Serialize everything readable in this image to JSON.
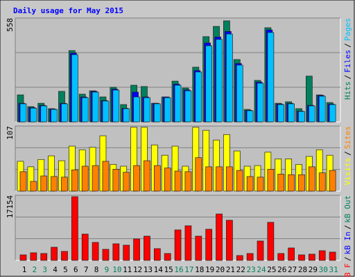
{
  "title": "Daily usage for May 2015",
  "title_color": "#0000ff",
  "legend_separator": "/",
  "chart_data": [
    {
      "type": "bar",
      "ylim": [
        0,
        558
      ],
      "yticks": [
        558
      ],
      "series": [
        {
          "name": "Hits",
          "color": "#00805c",
          "values": [
            145,
            82,
            100,
            71,
            164,
            383,
            149,
            167,
            134,
            186,
            93,
            197,
            190,
            100,
            134,
            219,
            182,
            294,
            458,
            513,
            543,
            335,
            67,
            223,
            506,
            100,
            108,
            71,
            246,
            145,
            104
          ]
        },
        {
          "name": "Files",
          "color": "#0000ff",
          "values": [
            100,
            77,
            89,
            69,
            100,
            370,
            134,
            164,
            115,
            176,
            73,
            160,
            134,
            100,
            134,
            203,
            172,
            276,
            424,
            456,
            486,
            314,
            62,
            214,
            494,
            96,
            100,
            58,
            89,
            142,
            96
          ]
        },
        {
          "name": "Pages",
          "color": "#00c0ff",
          "values": [
            97,
            74,
            86,
            67,
            97,
            361,
            130,
            160,
            112,
            171,
            71,
            134,
            130,
            97,
            130,
            197,
            167,
            268,
            409,
            443,
            472,
            305,
            60,
            208,
            480,
            93,
            97,
            56,
            86,
            138,
            93
          ]
        }
      ]
    },
    {
      "type": "bar",
      "ylim": [
        0,
        107
      ],
      "yticks": [
        107
      ],
      "series": [
        {
          "name": "Visits",
          "color": "#ffff00",
          "values": [
            49,
            40,
            52,
            58,
            50,
            74,
            68,
            72,
            91,
            44,
            41,
            105,
            105,
            76,
            59,
            74,
            41,
            105,
            100,
            84,
            93,
            66,
            41,
            42,
            64,
            53,
            53,
            44,
            57,
            68,
            59
          ]
        },
        {
          "name": "Sites",
          "color": "#ff8000",
          "values": [
            32,
            16,
            25,
            24,
            23,
            35,
            41,
            42,
            49,
            36,
            31,
            42,
            50,
            42,
            38,
            33,
            32,
            55,
            40,
            40,
            40,
            34,
            24,
            23,
            36,
            28,
            27,
            27,
            40,
            30,
            34
          ]
        }
      ]
    },
    {
      "type": "bar",
      "ylim": [
        0,
        17154
      ],
      "yticks": [
        17154
      ],
      "categories": [
        "1",
        "2",
        "3",
        "4",
        "5",
        "6",
        "7",
        "8",
        "9",
        "10",
        "11",
        "12",
        "13",
        "14",
        "15",
        "16",
        "17",
        "18",
        "19",
        "20",
        "21",
        "22",
        "23",
        "24",
        "25",
        "26",
        "27",
        "28",
        "29",
        "30",
        "31"
      ],
      "category_colors": [
        "#000000",
        "#00805c",
        "#00805c",
        "#000000",
        "#000000",
        "#000000",
        "#000000",
        "#000000",
        "#00805c",
        "#00805c",
        "#000000",
        "#000000",
        "#000000",
        "#000000",
        "#000000",
        "#00805c",
        "#00805c",
        "#000000",
        "#000000",
        "#000000",
        "#000000",
        "#000000",
        "#00805c",
        "#00805c",
        "#000000",
        "#000000",
        "#000000",
        "#000000",
        "#000000",
        "#00805c",
        "#00805c"
      ],
      "series": [
        {
          "name": "kB F",
          "color": "#ff0000",
          "values": [
            1460,
            2008,
            1825,
            3468,
            2373,
            16790,
            6935,
            4745,
            2920,
            4380,
            4015,
            5658,
            6388,
            3103,
            1825,
            8030,
            9125,
            6388,
            8213,
            12228,
            10585,
            1278,
            1825,
            5110,
            10038,
            1825,
            3285,
            1460,
            1643,
            2555,
            2190
          ]
        }
      ],
      "legend_items": [
        {
          "name": "kB In",
          "color": "#0000ff"
        },
        {
          "name": "kB Out",
          "color": "#00805c"
        }
      ]
    }
  ]
}
